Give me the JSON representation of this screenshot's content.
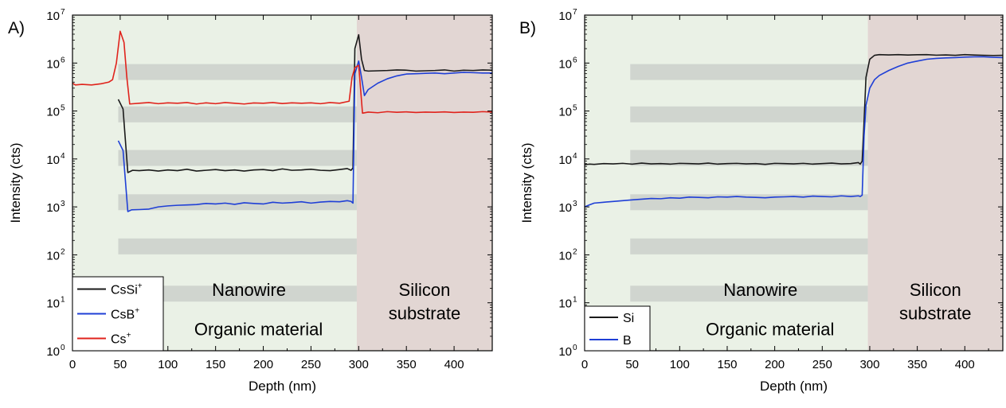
{
  "chart_data": [
    {
      "panel_label": "A)",
      "type": "line",
      "xlabel": "Depth (nm)",
      "ylabel": "Intensity (cts)",
      "xlim": [
        0,
        440
      ],
      "ylim": [
        1,
        10000000
      ],
      "yscale": "log",
      "x_ticks": [
        0,
        50,
        100,
        150,
        200,
        250,
        300,
        350,
        400
      ],
      "y_ticks": [
        {
          "base": "10",
          "exp": "0",
          "value": 1
        },
        {
          "base": "10",
          "exp": "1",
          "value": 10
        },
        {
          "base": "10",
          "exp": "2",
          "value": 100
        },
        {
          "base": "10",
          "exp": "3",
          "value": 1000
        },
        {
          "base": "10",
          "exp": "4",
          "value": 10000
        },
        {
          "base": "10",
          "exp": "5",
          "value": 100000
        },
        {
          "base": "10",
          "exp": "6",
          "value": 1000000
        },
        {
          "base": "10",
          "exp": "7",
          "value": 10000000
        }
      ],
      "regions": [
        {
          "from": 0,
          "to": 298,
          "color": "#eaf1e6"
        },
        {
          "from": 298,
          "to": 440,
          "color": "#e2d6d3"
        }
      ],
      "bands": {
        "x_from": 48,
        "x_to": 298,
        "centers": [
          650000,
          85000,
          10500,
          1250,
          150,
          15.5
        ],
        "color": "#b9bdbb"
      },
      "annotations": [
        {
          "text": "Nanowire",
          "x": 185,
          "y": 14
        },
        {
          "text": "Organic material",
          "x": 195,
          "y": 2.1
        },
        {
          "text": "Silicon",
          "x": 369,
          "y": 14
        },
        {
          "text": "substrate",
          "x": 369,
          "y": 4.5
        }
      ],
      "legend": "bottom-left",
      "series": [
        {
          "name": "CsSi",
          "name_sup": "+",
          "color": "#1a1a1a",
          "x": [
            48,
            53,
            58,
            63,
            70,
            80,
            90,
            100,
            110,
            120,
            130,
            140,
            150,
            160,
            170,
            180,
            190,
            200,
            210,
            220,
            230,
            240,
            250,
            260,
            270,
            280,
            288,
            292,
            294,
            296,
            300,
            303,
            306,
            310,
            320,
            330,
            340,
            350,
            360,
            370,
            380,
            390,
            400,
            410,
            420,
            430,
            440
          ],
          "y": [
            175000,
            110000,
            5200,
            5800,
            5700,
            5900,
            5600,
            5900,
            5700,
            6100,
            5600,
            5800,
            6000,
            5700,
            5900,
            5600,
            5900,
            6000,
            5700,
            6200,
            5800,
            5900,
            6100,
            5800,
            5700,
            6000,
            6300,
            5800,
            6500,
            2000000,
            3900000,
            1200000,
            700000,
            680000,
            690000,
            700000,
            720000,
            710000,
            680000,
            690000,
            700000,
            720000,
            680000,
            710000,
            700000,
            720000,
            710000
          ]
        },
        {
          "name": "CsB",
          "name_sup": "+",
          "color": "#1f3fd6",
          "x": [
            48,
            53,
            58,
            62,
            70,
            80,
            90,
            100,
            110,
            120,
            130,
            140,
            150,
            160,
            170,
            180,
            190,
            200,
            210,
            220,
            230,
            240,
            250,
            260,
            270,
            280,
            288,
            292,
            294,
            296,
            300,
            303,
            306,
            310,
            320,
            330,
            340,
            350,
            360,
            370,
            380,
            390,
            400,
            410,
            420,
            430,
            440
          ],
          "y": [
            24000,
            15000,
            800,
            870,
            880,
            900,
            1000,
            1050,
            1080,
            1100,
            1120,
            1180,
            1150,
            1200,
            1130,
            1220,
            1180,
            1150,
            1250,
            1200,
            1230,
            1280,
            1200,
            1260,
            1300,
            1280,
            1350,
            1300,
            1200,
            600000,
            1100000,
            500000,
            210000,
            280000,
            380000,
            470000,
            540000,
            590000,
            600000,
            610000,
            620000,
            600000,
            620000,
            640000,
            630000,
            620000,
            620000
          ]
        },
        {
          "name": "Cs",
          "name_sup": "+",
          "color": "#e0231c",
          "x": [
            0,
            3,
            10,
            20,
            30,
            38,
            42,
            46,
            50,
            54,
            57,
            60,
            70,
            80,
            90,
            100,
            110,
            120,
            130,
            140,
            150,
            160,
            170,
            180,
            190,
            200,
            210,
            220,
            230,
            240,
            250,
            260,
            270,
            280,
            290,
            293,
            296,
            300,
            304,
            310,
            320,
            330,
            340,
            350,
            360,
            370,
            380,
            390,
            400,
            410,
            420,
            430,
            440
          ],
          "y": [
            380000,
            350000,
            360000,
            350000,
            370000,
            400000,
            450000,
            1000000,
            4600000,
            2700000,
            500000,
            140000,
            145000,
            150000,
            142000,
            148000,
            145000,
            150000,
            140000,
            148000,
            142000,
            150000,
            145000,
            140000,
            147000,
            145000,
            150000,
            143000,
            148000,
            145000,
            148000,
            142000,
            150000,
            145000,
            160000,
            500000,
            800000,
            900000,
            90000,
            95000,
            92000,
            97000,
            94000,
            96000,
            93000,
            95000,
            94000,
            96000,
            93000,
            95000,
            94000,
            97000,
            95000
          ]
        }
      ]
    },
    {
      "panel_label": "B)",
      "type": "line",
      "xlabel": "Depth (nm)",
      "ylabel": "Intensity (cts)",
      "xlim": [
        0,
        440
      ],
      "ylim": [
        1,
        10000000
      ],
      "yscale": "log",
      "x_ticks": [
        0,
        50,
        100,
        150,
        200,
        250,
        300,
        350,
        400
      ],
      "y_ticks": [
        {
          "base": "10",
          "exp": "0",
          "value": 1
        },
        {
          "base": "10",
          "exp": "1",
          "value": 10
        },
        {
          "base": "10",
          "exp": "2",
          "value": 100
        },
        {
          "base": "10",
          "exp": "3",
          "value": 1000
        },
        {
          "base": "10",
          "exp": "4",
          "value": 10000
        },
        {
          "base": "10",
          "exp": "5",
          "value": 100000
        },
        {
          "base": "10",
          "exp": "6",
          "value": 1000000
        },
        {
          "base": "10",
          "exp": "7",
          "value": 10000000
        }
      ],
      "regions": [
        {
          "from": 0,
          "to": 298,
          "color": "#eaf1e6"
        },
        {
          "from": 298,
          "to": 440,
          "color": "#e2d6d3"
        }
      ],
      "bands": {
        "x_from": 48,
        "x_to": 298,
        "centers": [
          650000,
          85000,
          10500,
          1250,
          150,
          15.5
        ],
        "color": "#b9bdbb"
      },
      "annotations": [
        {
          "text": "Nanowire",
          "x": 185,
          "y": 14
        },
        {
          "text": "Organic material",
          "x": 195,
          "y": 2.1
        },
        {
          "text": "Silicon",
          "x": 369,
          "y": 14
        },
        {
          "text": "substrate",
          "x": 369,
          "y": 4.5
        }
      ],
      "legend": "bottom-left",
      "series": [
        {
          "name": "Si",
          "name_sup": "",
          "color": "#1a1a1a",
          "x": [
            0,
            5,
            10,
            20,
            30,
            40,
            50,
            60,
            70,
            80,
            90,
            100,
            110,
            120,
            130,
            140,
            150,
            160,
            170,
            180,
            190,
            200,
            210,
            220,
            230,
            240,
            250,
            260,
            270,
            280,
            288,
            290,
            292,
            294,
            296,
            300,
            305,
            310,
            320,
            330,
            340,
            350,
            360,
            370,
            380,
            390,
            400,
            410,
            420,
            430,
            440
          ],
          "y": [
            7600,
            7800,
            7700,
            8000,
            7900,
            8100,
            7800,
            8200,
            7900,
            8000,
            7800,
            8100,
            8000,
            7900,
            8200,
            7800,
            8000,
            8100,
            7900,
            8000,
            7700,
            8100,
            8000,
            7900,
            8100,
            7800,
            8000,
            8200,
            7900,
            8000,
            8400,
            7800,
            9000,
            60000,
            500000,
            1200000,
            1450000,
            1500000,
            1480000,
            1500000,
            1470000,
            1490000,
            1500000,
            1460000,
            1480000,
            1450000,
            1500000,
            1470000,
            1450000,
            1440000,
            1450000
          ]
        },
        {
          "name": "B",
          "name_sup": "",
          "color": "#1f3fd6",
          "x": [
            0,
            5,
            10,
            20,
            30,
            40,
            50,
            60,
            70,
            80,
            90,
            100,
            110,
            120,
            130,
            140,
            150,
            160,
            170,
            180,
            190,
            200,
            210,
            220,
            230,
            240,
            250,
            260,
            270,
            280,
            288,
            290,
            292,
            294,
            296,
            300,
            305,
            310,
            320,
            330,
            340,
            350,
            360,
            370,
            380,
            390,
            400,
            410,
            420,
            430,
            440
          ],
          "y": [
            1000,
            1100,
            1200,
            1250,
            1300,
            1350,
            1400,
            1450,
            1500,
            1480,
            1550,
            1520,
            1600,
            1580,
            1550,
            1620,
            1600,
            1650,
            1600,
            1580,
            1550,
            1600,
            1620,
            1650,
            1600,
            1680,
            1650,
            1620,
            1700,
            1650,
            1700,
            1650,
            1750,
            30000,
            130000,
            300000,
            450000,
            550000,
            700000,
            850000,
            1000000,
            1100000,
            1200000,
            1250000,
            1280000,
            1300000,
            1330000,
            1350000,
            1350000,
            1320000,
            1300000
          ]
        }
      ]
    }
  ]
}
